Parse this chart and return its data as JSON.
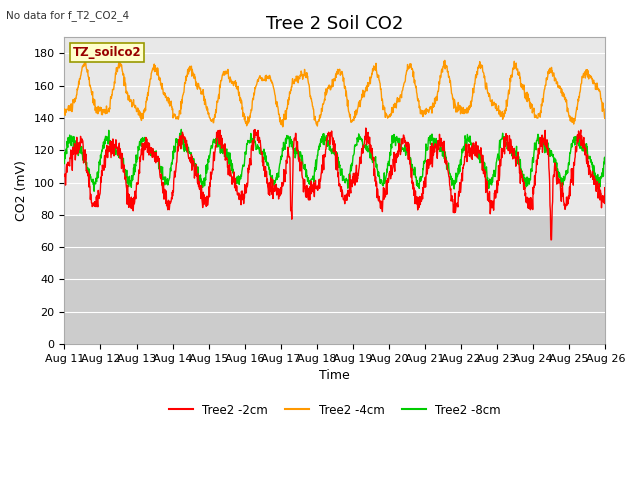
{
  "title": "Tree 2 Soil CO2",
  "top_left_text": "No data for f_T2_CO2_4",
  "ylabel": "CO2 (mV)",
  "xlabel": "Time",
  "ylim": [
    0,
    190
  ],
  "yticks": [
    0,
    20,
    40,
    60,
    80,
    100,
    120,
    140,
    160,
    180
  ],
  "xtick_labels": [
    "Aug 11",
    "Aug 12",
    "Aug 13",
    "Aug 14",
    "Aug 15",
    "Aug 16",
    "Aug 17",
    "Aug 18",
    "Aug 19",
    "Aug 20",
    "Aug 21",
    "Aug 22",
    "Aug 23",
    "Aug 24",
    "Aug 25",
    "Aug 26"
  ],
  "legend_labels": [
    "Tree2 -2cm",
    "Tree2 -4cm",
    "Tree2 -8cm"
  ],
  "legend_colors": [
    "#ff0000",
    "#ff9900",
    "#00cc00"
  ],
  "data_color_2cm": "#ff0000",
  "data_color_4cm": "#ff9900",
  "data_color_8cm": "#00cc00",
  "annotation_label": "TZ_soilco2",
  "annotation_bg": "#ffffcc",
  "annotation_border": "#999900",
  "bg_upper": "#e8e8e8",
  "bg_lower": "#cccccc",
  "bg_split": 80,
  "grid_color": "#ffffff",
  "title_fontsize": 13,
  "label_fontsize": 9,
  "tick_fontsize": 8,
  "n_days": 15,
  "points_per_day": 96,
  "orange_base": 155,
  "orange_amp": 14,
  "red_base": 108,
  "red_amp": 18,
  "green_base": 115,
  "green_amp": 12,
  "dip1_day": 6.3,
  "dip1_depth": 50,
  "dip2_day": 13.5,
  "dip2_depth": 50
}
